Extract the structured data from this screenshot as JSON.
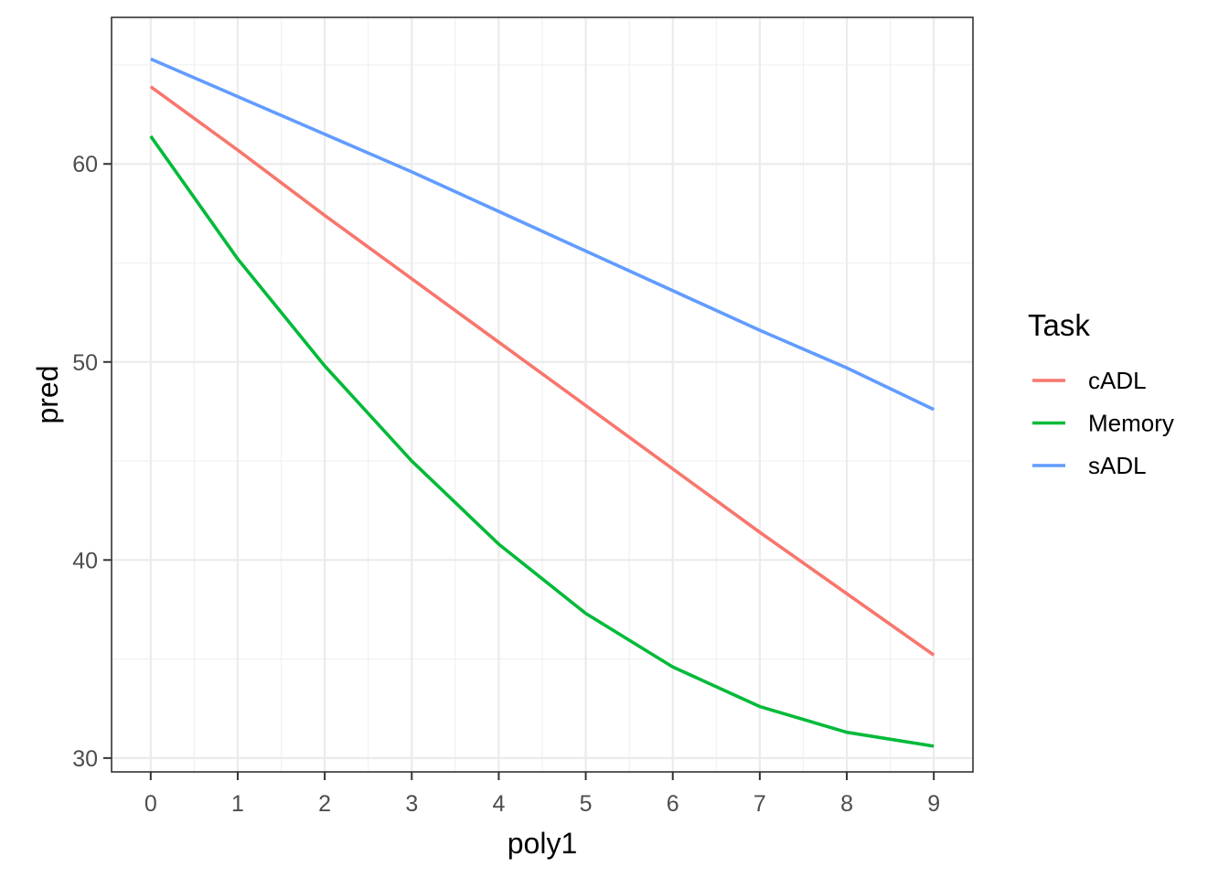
{
  "chart_data": {
    "type": "line",
    "title": "",
    "xlabel": "poly1",
    "ylabel": "pred",
    "xlim": [
      -0.45,
      9.45
    ],
    "ylim": [
      29.3,
      67.4
    ],
    "x_ticks": [
      0,
      1,
      2,
      3,
      4,
      5,
      6,
      7,
      8,
      9
    ],
    "y_ticks": [
      30,
      40,
      50,
      60
    ],
    "grid": true,
    "legend": {
      "title": "Task",
      "position": "right"
    },
    "x": [
      0,
      1,
      2,
      3,
      4,
      5,
      6,
      7,
      8,
      9
    ],
    "series": [
      {
        "name": "cADL",
        "color": "#F8766D",
        "values": [
          63.9,
          60.7,
          57.4,
          54.2,
          51.0,
          47.8,
          44.6,
          41.4,
          38.3,
          35.2
        ]
      },
      {
        "name": "Memory",
        "color": "#00BA38",
        "values": [
          61.4,
          55.2,
          49.8,
          45.0,
          40.8,
          37.3,
          34.6,
          32.6,
          31.3,
          30.6
        ]
      },
      {
        "name": "sADL",
        "color": "#619CFF",
        "values": [
          65.3,
          63.4,
          61.5,
          59.6,
          57.6,
          55.6,
          53.6,
          51.6,
          49.7,
          47.6
        ]
      }
    ]
  }
}
